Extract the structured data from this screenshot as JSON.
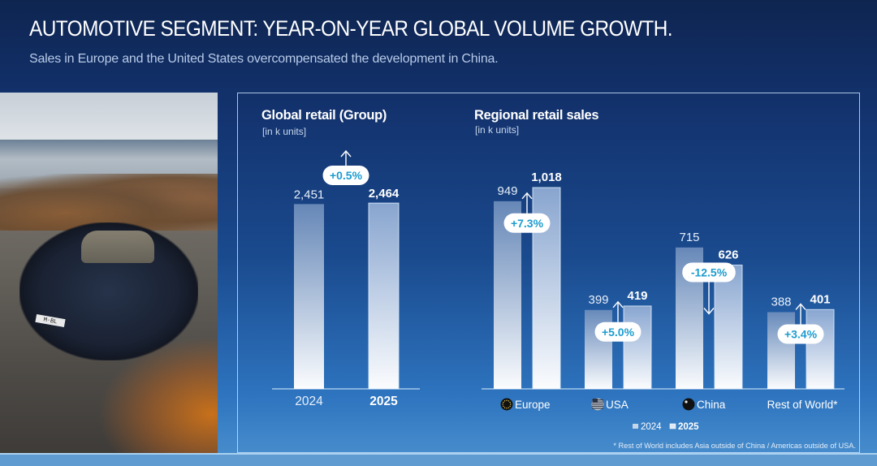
{
  "header": {
    "title": "AUTOMOTIVE SEGMENT: YEAR-ON-YEAR GLOBAL VOLUME GROWTH.",
    "subtitle": "Sales in Europe and the United States overcompensated the development in China."
  },
  "photo": {
    "description": "Dark blue BMW sedan parked on a seaside road with rocky coastline",
    "plate_text": "M·BL 4227"
  },
  "colors": {
    "accent_text": "#1d9ccf",
    "panel_border": "#c8e1fa",
    "bar_2024": "#6f93c2",
    "bar_2025": "#9ab9de"
  },
  "chart_data": [
    {
      "type": "bar",
      "id": "global",
      "title": "Global retail (Group)",
      "unit": "[in k units]",
      "categories": [
        "2024",
        "2025"
      ],
      "values": [
        2451,
        2464
      ],
      "value_labels": [
        "2,451",
        "2,464"
      ],
      "change_label": "+0.5%",
      "change_direction": "up",
      "ylim": [
        0,
        2700
      ],
      "grid": false
    },
    {
      "type": "bar",
      "id": "regional",
      "title": "Regional retail sales",
      "unit": "[in k units]",
      "categories": [
        "Europe",
        "USA",
        "China",
        "Rest of World*"
      ],
      "category_icons": [
        "eu-flag-icon",
        "us-flag-icon",
        "china-flag-icon",
        ""
      ],
      "series": [
        {
          "name": "2024",
          "values": [
            949,
            399,
            715,
            388
          ],
          "labels": [
            "949",
            "399",
            "715",
            "388"
          ]
        },
        {
          "name": "2025",
          "values": [
            1018,
            419,
            626,
            401
          ],
          "labels": [
            "1,018",
            "419",
            "626",
            "401"
          ]
        }
      ],
      "changes": [
        {
          "label": "+7.3%",
          "direction": "up"
        },
        {
          "label": "+5.0%",
          "direction": "up"
        },
        {
          "label": "-12.5%",
          "direction": "down"
        },
        {
          "label": "+3.4%",
          "direction": "up"
        }
      ],
      "legend": [
        "2024",
        "2025"
      ],
      "legend_position": "bottom-center",
      "ylim": [
        0,
        1018
      ],
      "grid": false,
      "footnote": "* Rest of World includes Asia outside of China / Americas outside of USA."
    }
  ]
}
